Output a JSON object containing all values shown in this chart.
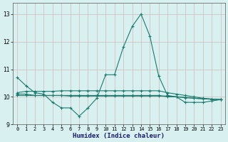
{
  "xlabel": "Humidex (Indice chaleur)",
  "x": [
    0,
    1,
    2,
    3,
    4,
    5,
    6,
    7,
    8,
    9,
    10,
    11,
    12,
    13,
    14,
    15,
    16,
    17,
    18,
    19,
    20,
    21,
    22,
    23
  ],
  "line1": [
    10.7,
    10.4,
    10.15,
    10.1,
    9.8,
    9.6,
    9.6,
    9.3,
    9.6,
    9.95,
    10.8,
    10.8,
    11.8,
    12.55,
    13.0,
    12.2,
    10.75,
    10.05,
    10.0,
    9.8,
    9.8,
    9.8,
    9.85,
    9.9
  ],
  "line2": [
    10.15,
    10.2,
    10.2,
    10.2,
    10.2,
    10.22,
    10.22,
    10.22,
    10.22,
    10.22,
    10.22,
    10.22,
    10.22,
    10.22,
    10.22,
    10.22,
    10.22,
    10.15,
    10.1,
    10.05,
    10.0,
    9.95,
    9.92,
    9.9
  ],
  "line3": [
    10.1,
    10.1,
    10.05,
    10.05,
    10.05,
    10.05,
    10.05,
    10.05,
    10.05,
    10.05,
    10.05,
    10.05,
    10.05,
    10.05,
    10.05,
    10.05,
    10.05,
    10.0,
    10.0,
    9.97,
    9.95,
    9.93,
    9.91,
    9.9
  ],
  "line4": [
    10.05,
    10.05,
    10.05,
    10.05,
    10.05,
    10.05,
    10.03,
    10.03,
    10.03,
    10.03,
    10.03,
    10.03,
    10.03,
    10.03,
    10.03,
    10.03,
    10.03,
    10.03,
    10.0,
    9.98,
    9.95,
    9.93,
    9.92,
    9.9
  ],
  "color": "#1a7a6e",
  "bg_color": "#d8f0f0",
  "grid_color": "#d0b8b8",
  "ylim": [
    9.0,
    13.4
  ],
  "yticks": [
    9,
    10,
    11,
    12,
    13
  ],
  "xticks": [
    0,
    1,
    2,
    3,
    4,
    5,
    6,
    7,
    8,
    9,
    10,
    11,
    12,
    13,
    14,
    15,
    16,
    17,
    18,
    19,
    20,
    21,
    22,
    23
  ],
  "marker": "+",
  "markersize": 3,
  "linewidth": 0.8,
  "xlabel_fontsize": 6.5,
  "tick_fontsize": 5
}
